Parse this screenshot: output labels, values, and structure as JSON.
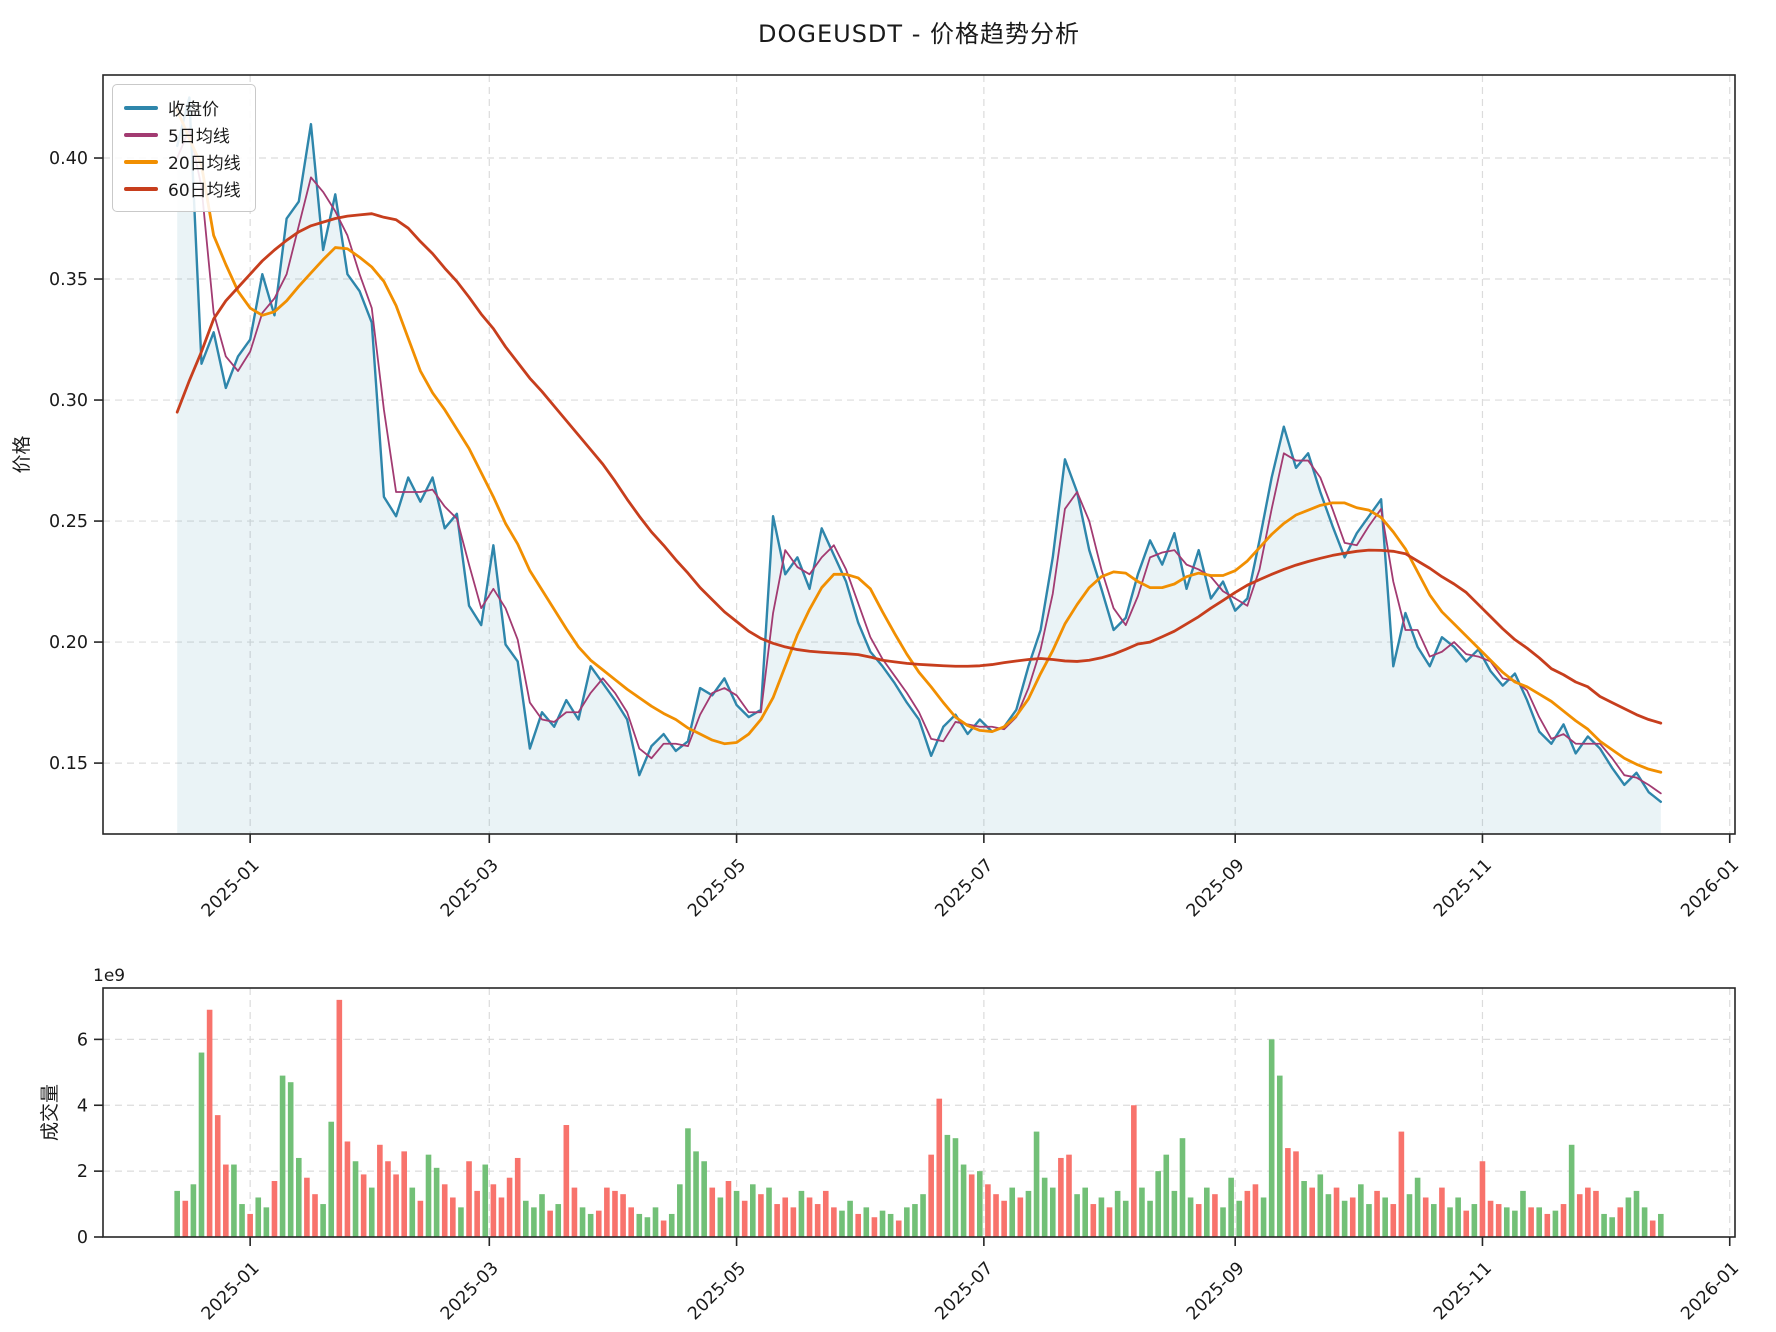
{
  "title": "DOGEUSDT - 价格趋势分析",
  "accent_colors": {
    "close": "#2E86AB",
    "ma5": "#A23B72",
    "ma20": "#F18F01",
    "ma60": "#C73E1D",
    "volume_up": "#72c077",
    "volume_down": "#f8736c",
    "grid": "#dcdcdc",
    "spine": "#262626",
    "close_fill": "rgba(46,134,171,0.10)"
  },
  "x_axis": {
    "tick_labels": [
      "2025-01",
      "2025-03",
      "2025-05",
      "2025-07",
      "2025-09",
      "2025-11",
      "2026-01"
    ],
    "tick_day_offsets": [
      18,
      77,
      138,
      199,
      261,
      322,
      383
    ],
    "day_range": [
      -18.3,
      384.3
    ]
  },
  "chart_data": [
    {
      "type": "line",
      "title": "DOGEUSDT - 价格趋势分析",
      "xlabel": "",
      "ylabel": "价格",
      "x_start_date": "2024-12-14",
      "x_step_days": 3,
      "ylim": [
        0.1207,
        0.4343
      ],
      "yticks": [
        0.15,
        0.2,
        0.25,
        0.3,
        0.35,
        0.4
      ],
      "grid": true,
      "legend_position": "upper left",
      "series": [
        {
          "name": "收盘价",
          "color": "#2E86AB",
          "width": 2.4,
          "fill_to_bottom": true,
          "values": [
            0.405,
            0.425,
            0.315,
            0.328,
            0.305,
            0.318,
            0.325,
            0.352,
            0.335,
            0.375,
            0.382,
            0.414,
            0.362,
            0.385,
            0.352,
            0.345,
            0.332,
            0.26,
            0.252,
            0.268,
            0.258,
            0.268,
            0.247,
            0.253,
            0.215,
            0.207,
            0.24,
            0.199,
            0.192,
            0.156,
            0.171,
            0.165,
            0.176,
            0.168,
            0.19,
            0.183,
            0.176,
            0.168,
            0.145,
            0.157,
            0.162,
            0.155,
            0.159,
            0.181,
            0.178,
            0.185,
            0.174,
            0.169,
            0.172,
            0.252,
            0.228,
            0.235,
            0.222,
            0.247,
            0.236,
            0.225,
            0.208,
            0.196,
            0.19,
            0.183,
            0.175,
            0.168,
            0.153,
            0.165,
            0.17,
            0.162,
            0.168,
            0.163,
            0.165,
            0.172,
            0.19,
            0.205,
            0.235,
            0.2755,
            0.262,
            0.238,
            0.222,
            0.205,
            0.21,
            0.228,
            0.242,
            0.232,
            0.245,
            0.222,
            0.238,
            0.218,
            0.225,
            0.213,
            0.218,
            0.242,
            0.268,
            0.289,
            0.272,
            0.278,
            0.262,
            0.248,
            0.235,
            0.245,
            0.252,
            0.259,
            0.19,
            0.212,
            0.198,
            0.19,
            0.202,
            0.198,
            0.192,
            0.197,
            0.188,
            0.182,
            0.187,
            0.176,
            0.163,
            0.158,
            0.166,
            0.154,
            0.161,
            0.156,
            0.148,
            0.141,
            0.146,
            0.138,
            0.134
          ]
        },
        {
          "name": "5日均线",
          "color": "#A23B72",
          "width": 1.8,
          "values": [
            0.4,
            0.412,
            0.388,
            0.336,
            0.318,
            0.312,
            0.32,
            0.336,
            0.342,
            0.352,
            0.372,
            0.392,
            0.386,
            0.378,
            0.368,
            0.352,
            0.338,
            0.296,
            0.262,
            0.262,
            0.262,
            0.263,
            0.256,
            0.251,
            0.232,
            0.214,
            0.222,
            0.214,
            0.201,
            0.175,
            0.168,
            0.167,
            0.171,
            0.171,
            0.179,
            0.185,
            0.179,
            0.171,
            0.156,
            0.152,
            0.158,
            0.158,
            0.157,
            0.17,
            0.179,
            0.181,
            0.178,
            0.171,
            0.171,
            0.212,
            0.238,
            0.231,
            0.228,
            0.235,
            0.24,
            0.23,
            0.216,
            0.202,
            0.193,
            0.186,
            0.179,
            0.171,
            0.16,
            0.159,
            0.167,
            0.166,
            0.165,
            0.165,
            0.164,
            0.169,
            0.181,
            0.197,
            0.22,
            0.255,
            0.262,
            0.25,
            0.23,
            0.214,
            0.207,
            0.219,
            0.235,
            0.237,
            0.238,
            0.232,
            0.23,
            0.227,
            0.221,
            0.218,
            0.215,
            0.23,
            0.255,
            0.278,
            0.275,
            0.275,
            0.268,
            0.255,
            0.241,
            0.24,
            0.248,
            0.255,
            0.225,
            0.205,
            0.205,
            0.194,
            0.196,
            0.2,
            0.195,
            0.194,
            0.192,
            0.185,
            0.184,
            0.18,
            0.169,
            0.16,
            0.162,
            0.158,
            0.158,
            0.158,
            0.152,
            0.145,
            0.144,
            0.141,
            0.1375
          ]
        },
        {
          "name": "20日均线",
          "color": "#F18F01",
          "width": 2.8,
          "values": [
            0.42,
            0.408,
            0.397,
            0.368,
            0.356,
            0.345,
            0.338,
            0.335,
            0.3365,
            0.341,
            0.347,
            0.3525,
            0.358,
            0.363,
            0.3625,
            0.359,
            0.355,
            0.349,
            0.339,
            0.3255,
            0.312,
            0.303,
            0.296,
            0.288,
            0.28,
            0.27,
            0.26,
            0.249,
            0.2405,
            0.2295,
            0.2215,
            0.2135,
            0.2055,
            0.198,
            0.1925,
            0.1885,
            0.1845,
            0.1805,
            0.177,
            0.1735,
            0.1705,
            0.168,
            0.1645,
            0.162,
            0.1595,
            0.158,
            0.1585,
            0.162,
            0.168,
            0.177,
            0.19,
            0.203,
            0.2135,
            0.2225,
            0.228,
            0.228,
            0.2265,
            0.222,
            0.2125,
            0.2035,
            0.195,
            0.1875,
            0.1815,
            0.175,
            0.169,
            0.1655,
            0.1635,
            0.163,
            0.165,
            0.1695,
            0.1765,
            0.187,
            0.1965,
            0.2075,
            0.2155,
            0.2225,
            0.227,
            0.229,
            0.2285,
            0.225,
            0.2225,
            0.2225,
            0.224,
            0.227,
            0.2285,
            0.2275,
            0.2275,
            0.2295,
            0.2335,
            0.239,
            0.2445,
            0.249,
            0.2525,
            0.2545,
            0.2565,
            0.2575,
            0.2575,
            0.2555,
            0.2545,
            0.2515,
            0.2455,
            0.2385,
            0.229,
            0.2195,
            0.2125,
            0.2075,
            0.2025,
            0.1975,
            0.1925,
            0.1875,
            0.1835,
            0.1815,
            0.1785,
            0.1755,
            0.1715,
            0.1675,
            0.164,
            0.159,
            0.1555,
            0.152,
            0.1495,
            0.1475,
            0.1462
          ]
        },
        {
          "name": "60日均线",
          "color": "#C73E1D",
          "width": 2.8,
          "values": [
            0.295,
            0.308,
            0.32,
            0.3335,
            0.341,
            0.3465,
            0.352,
            0.3575,
            0.362,
            0.366,
            0.3695,
            0.372,
            0.3735,
            0.375,
            0.376,
            0.3765,
            0.377,
            0.3755,
            0.3745,
            0.371,
            0.3655,
            0.3605,
            0.3545,
            0.349,
            0.3425,
            0.3355,
            0.3295,
            0.322,
            0.3155,
            0.309,
            0.3035,
            0.2975,
            0.2915,
            0.2855,
            0.2795,
            0.2735,
            0.2665,
            0.259,
            0.252,
            0.2455,
            0.24,
            0.234,
            0.2285,
            0.2225,
            0.2175,
            0.2125,
            0.2085,
            0.2045,
            0.2015,
            0.1995,
            0.198,
            0.1969,
            0.1962,
            0.1958,
            0.1955,
            0.1952,
            0.1948,
            0.1938,
            0.1925,
            0.1918,
            0.1912,
            0.1908,
            0.1905,
            0.1902,
            0.19,
            0.19,
            0.1902,
            0.1907,
            0.1915,
            0.1922,
            0.1928,
            0.1932,
            0.1928,
            0.1922,
            0.192,
            0.1925,
            0.1935,
            0.195,
            0.197,
            0.1992,
            0.2,
            0.2022,
            0.2045,
            0.2075,
            0.2105,
            0.214,
            0.2172,
            0.2205,
            0.2235,
            0.2258,
            0.228,
            0.23,
            0.2318,
            0.2333,
            0.2346,
            0.2358,
            0.2367,
            0.2375,
            0.238,
            0.2379,
            0.2375,
            0.2365,
            0.2335,
            0.2305,
            0.227,
            0.224,
            0.2205,
            0.2155,
            0.2105,
            0.2055,
            0.201,
            0.1975,
            0.1935,
            0.189,
            0.1865,
            0.1835,
            0.1815,
            0.1775,
            0.175,
            0.1725,
            0.17,
            0.168,
            0.1665
          ]
        }
      ]
    },
    {
      "type": "bar",
      "ylabel": "成交量",
      "scale_label": "1e9",
      "unit": 1000000000,
      "x_start_date": "2024-12-14",
      "x_step_days": 2,
      "ylim": [
        0,
        7.56
      ],
      "yticks": [
        0,
        2,
        4,
        6
      ],
      "grid": true,
      "values": [
        1.4,
        1.1,
        1.6,
        5.6,
        6.9,
        3.7,
        2.2,
        2.2,
        1.0,
        0.7,
        1.2,
        0.9,
        1.7,
        4.9,
        4.7,
        2.4,
        1.8,
        1.3,
        1.0,
        3.5,
        7.2,
        2.9,
        2.3,
        1.9,
        1.5,
        2.8,
        2.3,
        1.9,
        2.6,
        1.5,
        1.1,
        2.5,
        2.1,
        1.6,
        1.2,
        0.9,
        2.3,
        1.4,
        2.2,
        1.6,
        1.2,
        1.8,
        2.4,
        1.1,
        0.9,
        1.3,
        0.8,
        1.0,
        3.4,
        1.5,
        0.9,
        0.7,
        0.8,
        1.5,
        1.4,
        1.3,
        0.9,
        0.7,
        0.6,
        0.9,
        0.5,
        0.7,
        1.6,
        3.3,
        2.6,
        2.3,
        1.5,
        1.2,
        1.7,
        1.4,
        1.1,
        1.6,
        1.3,
        1.5,
        1.0,
        1.2,
        0.9,
        1.4,
        1.2,
        1.0,
        1.4,
        0.9,
        0.8,
        1.1,
        0.7,
        0.9,
        0.6,
        0.8,
        0.7,
        0.5,
        0.9,
        1.0,
        1.3,
        2.5,
        4.2,
        3.1,
        3.0,
        2.2,
        1.9,
        2.0,
        1.6,
        1.3,
        1.1,
        1.5,
        1.2,
        1.4,
        3.2,
        1.8,
        1.5,
        2.4,
        2.5,
        1.3,
        1.5,
        1.0,
        1.2,
        0.9,
        1.4,
        1.1,
        4.0,
        1.5,
        1.1,
        2.0,
        2.5,
        1.4,
        3.0,
        1.2,
        1.0,
        1.5,
        1.3,
        0.9,
        1.8,
        1.1,
        1.4,
        1.6,
        1.2,
        6.0,
        4.9,
        2.7,
        2.6,
        1.7,
        1.5,
        1.9,
        1.3,
        1.5,
        1.1,
        1.2,
        1.6,
        1.0,
        1.4,
        1.2,
        1.0,
        3.2,
        1.3,
        1.8,
        1.2,
        1.0,
        1.5,
        0.9,
        1.2,
        0.8,
        1.0,
        2.3,
        1.1,
        1.0,
        0.9,
        0.8,
        1.4,
        0.9,
        0.9,
        0.7,
        0.8,
        1.0,
        2.8,
        1.3,
        1.5,
        1.4,
        0.7,
        0.6,
        0.9,
        1.2,
        1.4,
        0.9,
        0.5,
        0.7
      ],
      "directions": "grggrrrggrggrgggrrggrrgrgrrrrgrggrrgrrgrrrrgggrgrrggrrrrrgggrgggggrgrgrgrgrrrgrrrrggrgrggrgggrrgggrgrrrgrggggrrggrgrggrgggggggrgrgggrrgggrrgrggrgrggrgrrggrgrggrgrrrgggrgrgrgrrrggrgggrg",
      "up_color": "#72c077",
      "down_color": "#f8736c"
    }
  ]
}
